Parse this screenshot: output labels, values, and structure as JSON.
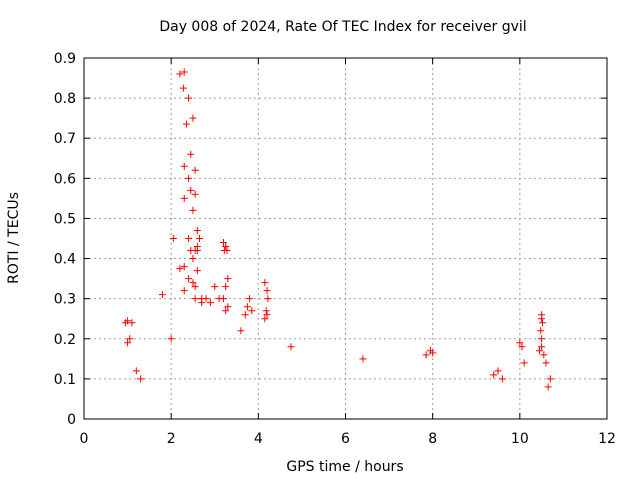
{
  "chart_data": {
    "type": "scatter",
    "title": "Day 008 of 2024, Rate Of TEC Index for receiver gvil",
    "xlabel": "GPS time / hours",
    "ylabel": "ROTI / TECUs",
    "xlim": [
      0,
      12
    ],
    "ylim": [
      0,
      0.9
    ],
    "x_ticks": [
      0,
      2,
      4,
      6,
      8,
      10,
      12
    ],
    "y_ticks": [
      0,
      0.1,
      0.2,
      0.3,
      0.4,
      0.5,
      0.6,
      0.7,
      0.8,
      0.9
    ],
    "x_tick_labels": [
      "0",
      "2",
      "4",
      "6",
      "8",
      "10",
      "12"
    ],
    "y_tick_labels": [
      "0",
      "0.1",
      "0.2",
      "0.3",
      "0.4",
      "0.5",
      "0.6",
      "0.7",
      "0.8",
      "0.9"
    ],
    "grid": true,
    "marker": "+",
    "series": [
      {
        "name": "ROTI",
        "color": "#ff0000",
        "x": [
          2.05,
          2.2,
          2.3,
          2.28,
          2.4,
          2.35,
          2.5,
          2.45,
          2.55,
          2.3,
          2.4,
          2.45,
          2.3,
          2.55,
          2.5,
          2.6,
          2.65,
          2.6,
          2.4,
          2.55,
          2.45,
          2.6,
          2.5,
          2.2,
          2.3,
          2.6,
          2.4,
          2.5,
          2.55,
          2.3,
          2.55,
          2.7,
          2.8,
          2.7,
          2.9,
          3.0,
          3.2,
          3.25,
          3.28,
          3.22,
          3.3,
          3.25,
          3.1,
          3.2,
          3.3,
          3.25,
          3.8,
          3.75,
          3.7,
          3.85,
          3.6,
          4.15,
          4.2,
          4.22,
          4.18,
          4.2,
          4.15,
          4.75,
          1.8,
          2.0,
          1.0,
          0.95,
          1.1,
          1.05,
          1.0,
          1.2,
          1.3,
          6.4,
          7.85,
          7.95,
          8.0,
          10.5,
          10.5,
          10.52,
          10.48,
          10.5,
          10.45,
          10.55,
          10.5,
          10.0,
          10.05,
          10.1,
          9.5,
          9.4,
          9.6,
          10.6,
          10.7,
          10.65
        ],
        "y": [
          0.45,
          0.86,
          0.865,
          0.825,
          0.8,
          0.735,
          0.75,
          0.66,
          0.62,
          0.63,
          0.6,
          0.57,
          0.55,
          0.56,
          0.52,
          0.47,
          0.45,
          0.43,
          0.45,
          0.42,
          0.42,
          0.42,
          0.4,
          0.375,
          0.38,
          0.37,
          0.35,
          0.34,
          0.33,
          0.32,
          0.3,
          0.3,
          0.3,
          0.29,
          0.29,
          0.33,
          0.44,
          0.43,
          0.42,
          0.42,
          0.35,
          0.33,
          0.3,
          0.3,
          0.28,
          0.27,
          0.3,
          0.28,
          0.26,
          0.27,
          0.22,
          0.34,
          0.32,
          0.3,
          0.27,
          0.26,
          0.25,
          0.18,
          0.31,
          0.2,
          0.245,
          0.24,
          0.24,
          0.2,
          0.19,
          0.12,
          0.1,
          0.15,
          0.16,
          0.17,
          0.165,
          0.26,
          0.25,
          0.24,
          0.22,
          0.2,
          0.17,
          0.16,
          0.18,
          0.19,
          0.18,
          0.14,
          0.12,
          0.11,
          0.1,
          0.14,
          0.1,
          0.08
        ]
      }
    ]
  }
}
